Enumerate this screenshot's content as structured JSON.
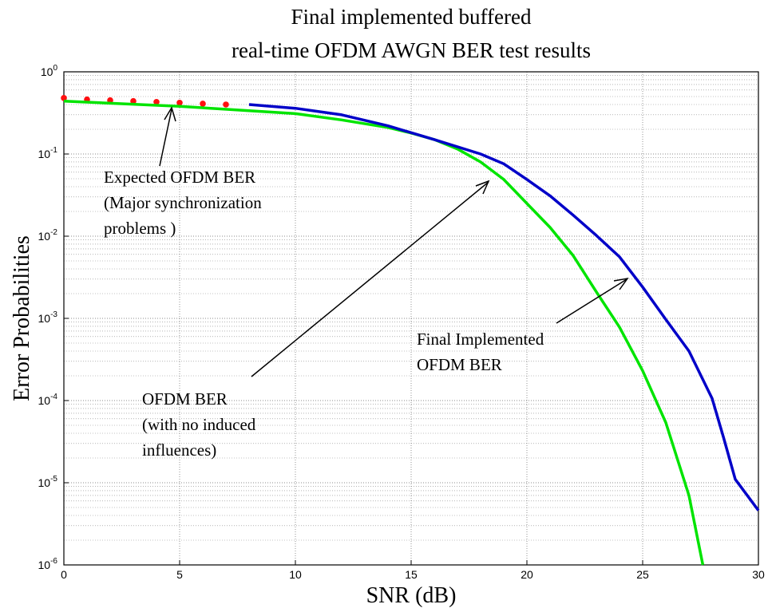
{
  "chart_data": {
    "type": "line",
    "title": [
      "Final implemented buffered",
      "real-time OFDM AWGN BER test results"
    ],
    "x_label": "SNR (dB)",
    "y_label": "Error Probabilities",
    "log_y": true,
    "grid": true,
    "xlim": [
      0,
      30
    ],
    "xticks": [
      0,
      5,
      10,
      15,
      20,
      25,
      30
    ],
    "ylim": [
      1e-06,
      1
    ],
    "yticks": [
      {
        "value": 1,
        "label": "10^0"
      },
      {
        "value": 0.1,
        "label": "10^-1"
      },
      {
        "value": 0.01,
        "label": "10^-2"
      },
      {
        "value": 0.001,
        "label": "10^-3"
      },
      {
        "value": 0.0001,
        "label": "10^-4"
      },
      {
        "value": 1e-05,
        "label": "10^-5"
      },
      {
        "value": 1e-06,
        "label": "10^-6"
      }
    ],
    "series": [
      {
        "color": "#ff1010",
        "style": "dots",
        "x": [
          0,
          1,
          2,
          3,
          4,
          5,
          6,
          7
        ],
        "values": [
          0.48,
          0.46,
          0.45,
          0.44,
          0.43,
          0.42,
          0.41,
          0.4
        ]
      },
      {
        "color": "#00e400",
        "style": "line",
        "x": [
          0,
          5,
          10,
          12,
          14,
          15,
          16,
          17,
          18,
          19,
          20,
          21,
          22,
          23,
          24,
          25,
          26,
          27,
          27.6
        ],
        "values": [
          0.44,
          0.38,
          0.31,
          0.26,
          0.21,
          0.18,
          0.15,
          0.115,
          0.08,
          0.049,
          0.025,
          0.0128,
          0.0058,
          0.0021,
          0.00078,
          0.00023,
          5.4e-05,
          7e-06,
          1e-06
        ]
      },
      {
        "color": "#0000c8",
        "style": "line",
        "x": [
          8,
          10,
          12,
          14,
          16,
          18,
          19,
          20,
          21,
          22,
          23,
          24,
          25,
          26,
          27,
          28,
          28.5,
          29,
          30
        ],
        "values": [
          0.4,
          0.36,
          0.3,
          0.22,
          0.15,
          0.1,
          0.076,
          0.049,
          0.031,
          0.018,
          0.0102,
          0.0056,
          0.0024,
          0.00097,
          0.0004,
          0.000106,
          3.5e-05,
          1.1e-05,
          4.6e-06
        ]
      }
    ],
    "annotations": [
      {
        "lines": [
          "Expected OFDM BER",
          "(Major synchronization",
          "problems )"
        ]
      },
      {
        "lines": [
          "OFDM BER",
          "(with no induced",
          "influences)"
        ]
      },
      {
        "lines": [
          "Final Implemented",
          "OFDM BER"
        ]
      }
    ]
  }
}
